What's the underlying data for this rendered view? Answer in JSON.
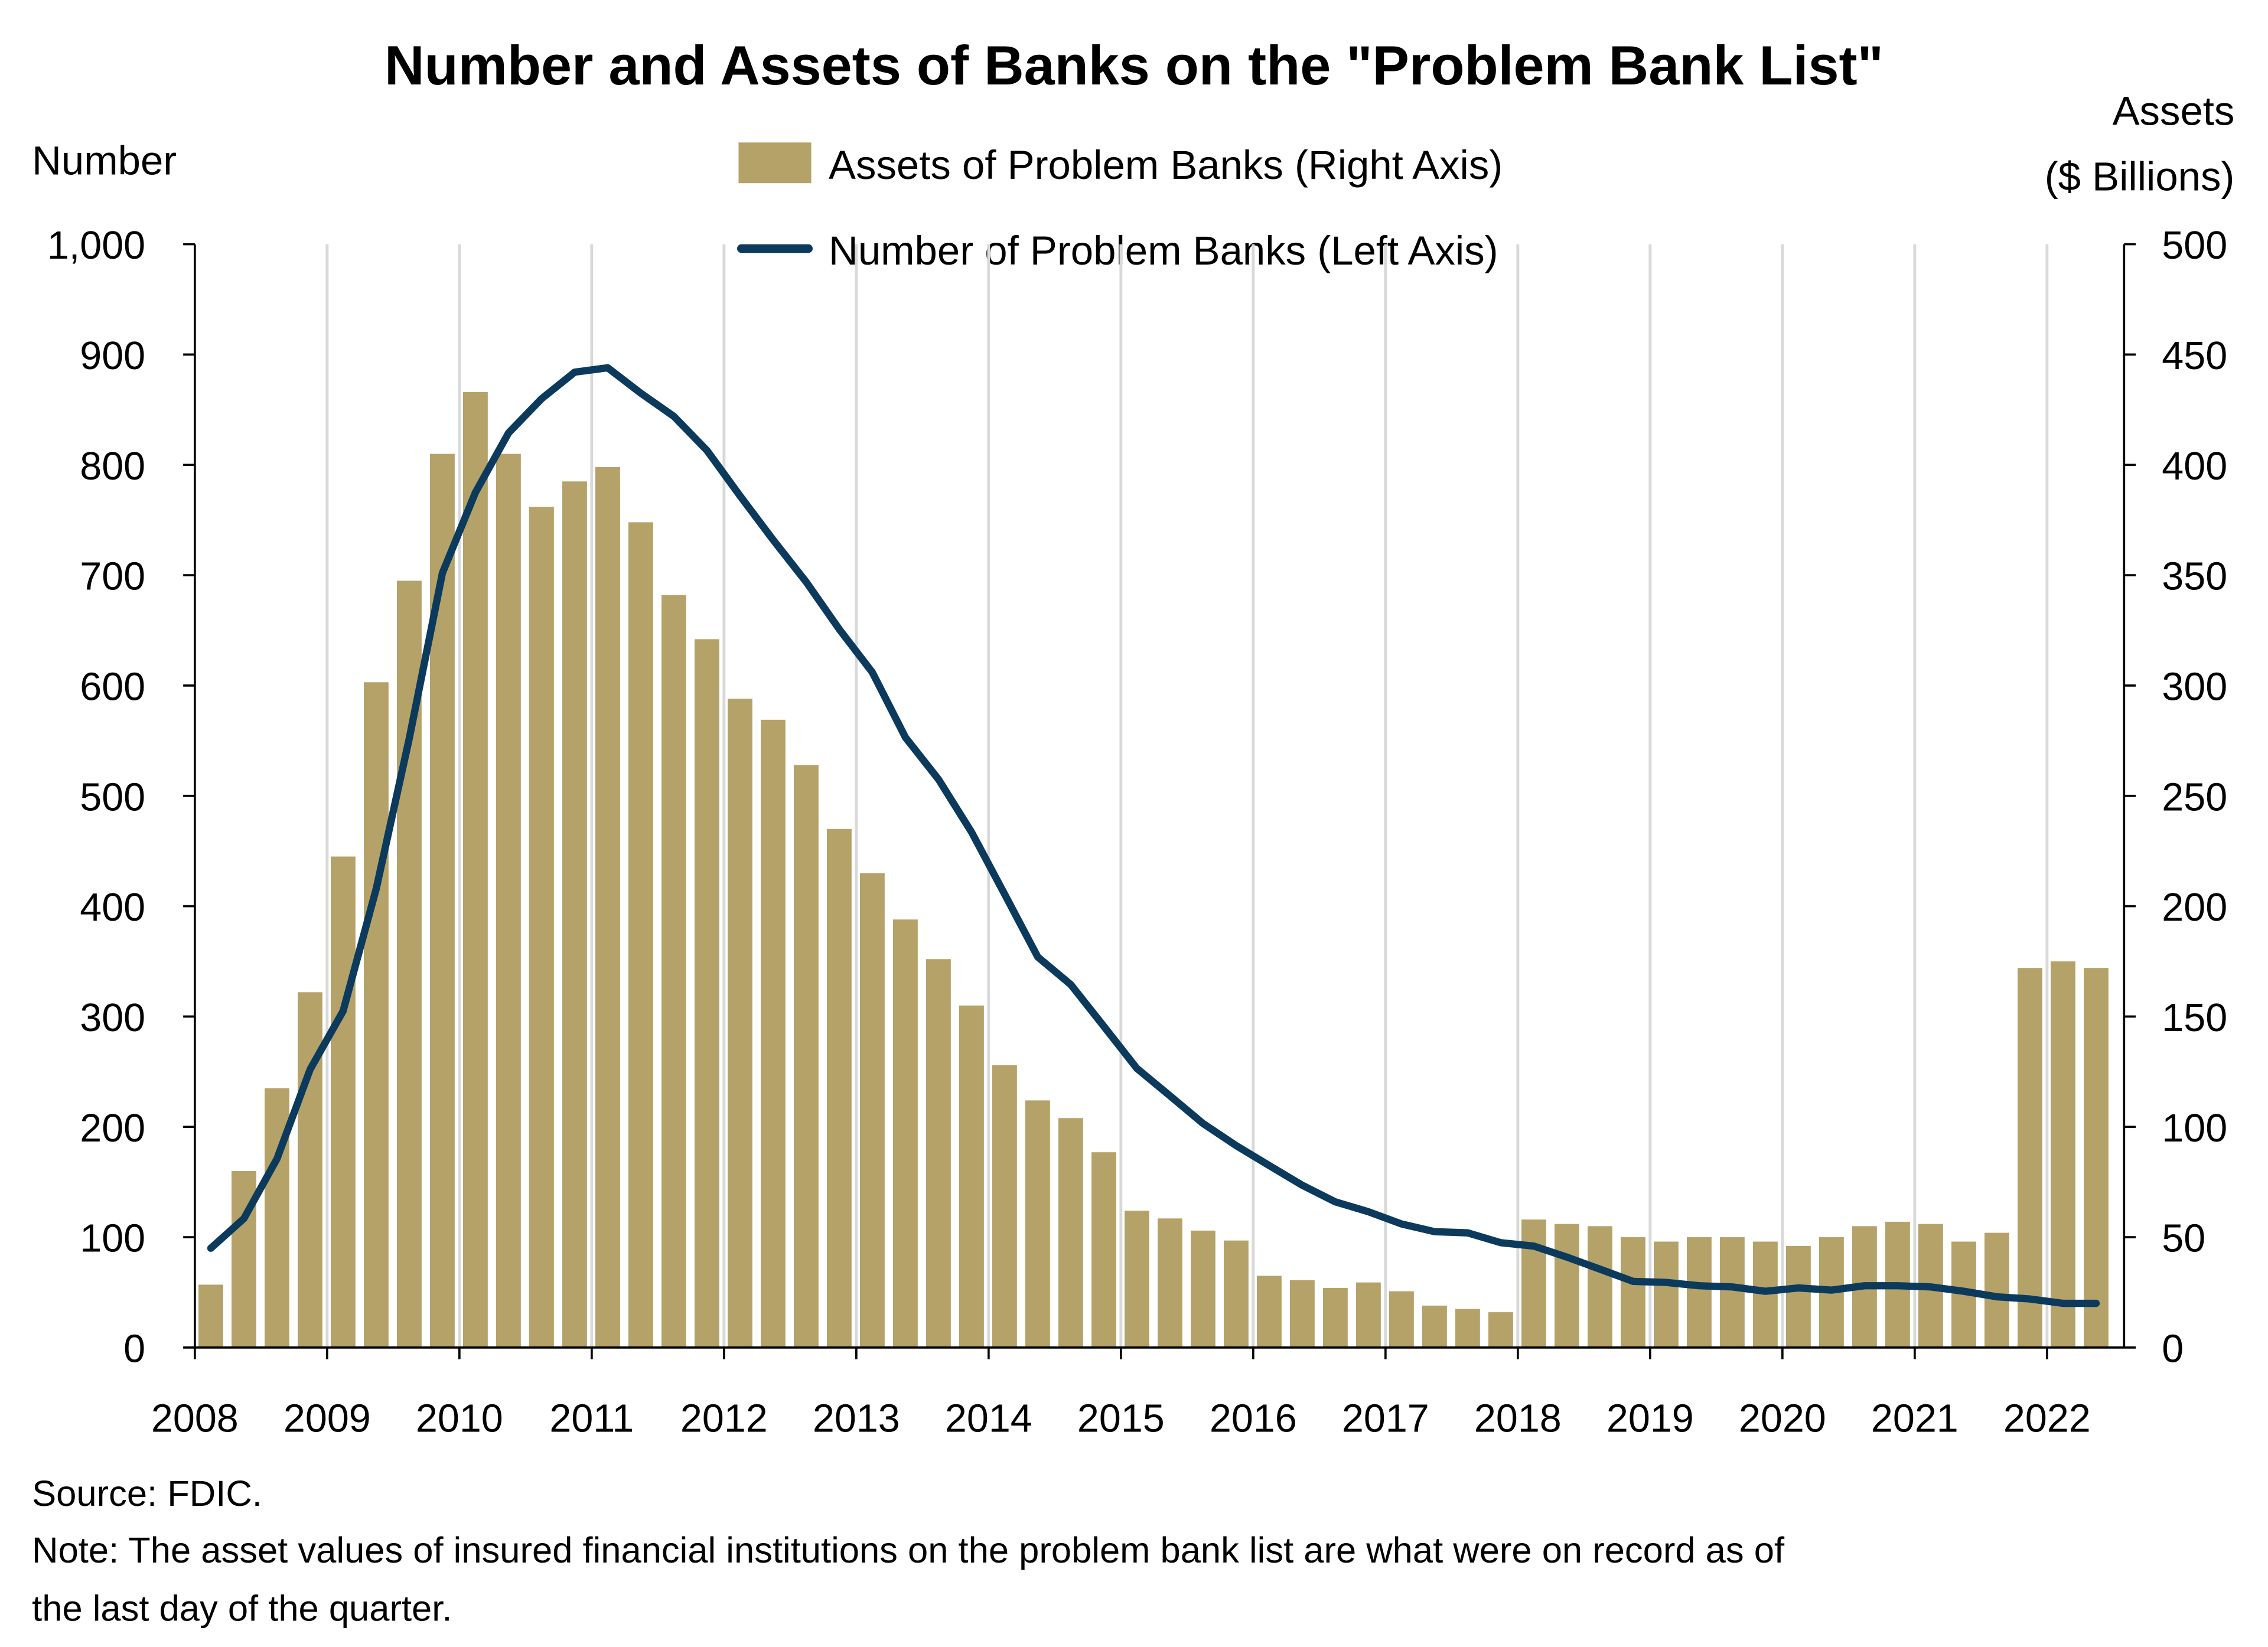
{
  "chart_data": {
    "type": "bar+line",
    "title": "Number and Assets of Banks on the \"Problem Bank List\"",
    "left_axis_label": "Number",
    "right_axis_label_line1": "Assets",
    "right_axis_label_line2": "($ Billions)",
    "left_ylim": [
      0,
      1000
    ],
    "right_ylim": [
      0,
      500
    ],
    "left_ticks": [
      "0",
      "100",
      "200",
      "300",
      "400",
      "500",
      "600",
      "700",
      "800",
      "900",
      "1,000"
    ],
    "right_ticks": [
      "0",
      "50",
      "100",
      "150",
      "200",
      "250",
      "300",
      "350",
      "400",
      "450",
      "500"
    ],
    "x_ticks": [
      "2008",
      "2009",
      "2010",
      "2011",
      "2012",
      "2013",
      "2014",
      "2015",
      "2016",
      "2017",
      "2018",
      "2019",
      "2020",
      "2021",
      "2022"
    ],
    "grid": "vertical at year ticks",
    "legend_position": "top-center",
    "series": [
      {
        "name": "Assets of Problem Banks (Right Axis)",
        "type": "bar",
        "axis": "right",
        "color": "#b5a268",
        "values": [
          28.5,
          80,
          117.5,
          161,
          222.5,
          301.5,
          347.5,
          405,
          433,
          405,
          381,
          392.5,
          399,
          374,
          341,
          321,
          294,
          284.5,
          264,
          235,
          215,
          194,
          176,
          155,
          128,
          112,
          104,
          88.5,
          62,
          58.5,
          53,
          48.5,
          32.5,
          30.5,
          27,
          29.5,
          25.5,
          19,
          17.5,
          16,
          58,
          56,
          55,
          50,
          48,
          50,
          50,
          48,
          46,
          50,
          55,
          57,
          56,
          48,
          52,
          172,
          175,
          172
        ]
      },
      {
        "name": "Number of Problem Banks (Left Axis)",
        "type": "line",
        "axis": "left",
        "color": "#0b3a5c",
        "values": [
          90,
          117,
          171,
          252,
          305,
          416,
          552,
          702,
          775,
          829,
          860,
          884,
          888,
          865,
          844,
          813,
          772,
          732,
          694,
          651,
          612,
          553,
          515,
          467,
          411,
          354,
          329,
          291,
          253,
          228,
          203,
          183,
          165,
          147,
          132,
          123,
          112,
          105,
          104,
          95,
          92,
          82,
          71,
          60,
          59,
          56,
          55,
          51,
          54,
          52,
          56,
          56,
          55,
          51,
          46,
          44,
          40,
          40
        ]
      }
    ],
    "x_start": "2008 Q1",
    "x_frequency": "quarterly"
  },
  "footer": {
    "source": "Source: FDIC.",
    "note_line1": "Note: The asset values of insured financial institutions on the problem bank list are what were on record as of",
    "note_line2": "the last day of the quarter."
  }
}
